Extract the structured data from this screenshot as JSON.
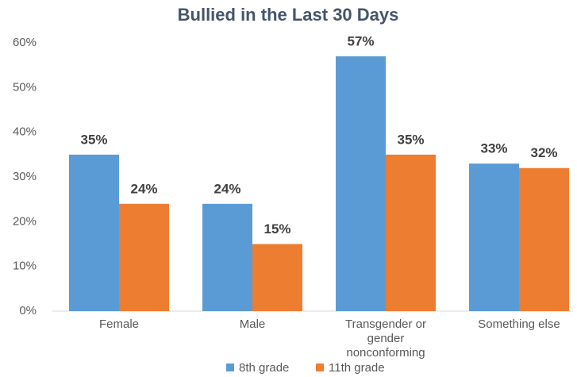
{
  "chart_data": {
    "type": "bar",
    "title": "Bullied in the Last 30 Days",
    "categories": [
      "Female",
      "Male",
      "Transgender or gender nonconforming",
      "Something else"
    ],
    "series": [
      {
        "name": "8th grade",
        "color": "#5b9bd5",
        "values": [
          35,
          24,
          57,
          33
        ],
        "value_labels": [
          "35%",
          "24%",
          "57%",
          "33%"
        ]
      },
      {
        "name": "11th grade",
        "color": "#ed7d31",
        "values": [
          24,
          15,
          35,
          32
        ],
        "value_labels": [
          "24%",
          "15%",
          "35%",
          "32%"
        ]
      }
    ],
    "ylim": [
      0,
      60
    ],
    "yticks": [
      {
        "value": 0,
        "label": "0%"
      },
      {
        "value": 10,
        "label": "10%"
      },
      {
        "value": 20,
        "label": "20%"
      },
      {
        "value": 30,
        "label": "30%"
      },
      {
        "value": 40,
        "label": "40%"
      },
      {
        "value": 50,
        "label": "50%"
      },
      {
        "value": 60,
        "label": "60%"
      }
    ],
    "grid": false,
    "legend": "bottom"
  }
}
